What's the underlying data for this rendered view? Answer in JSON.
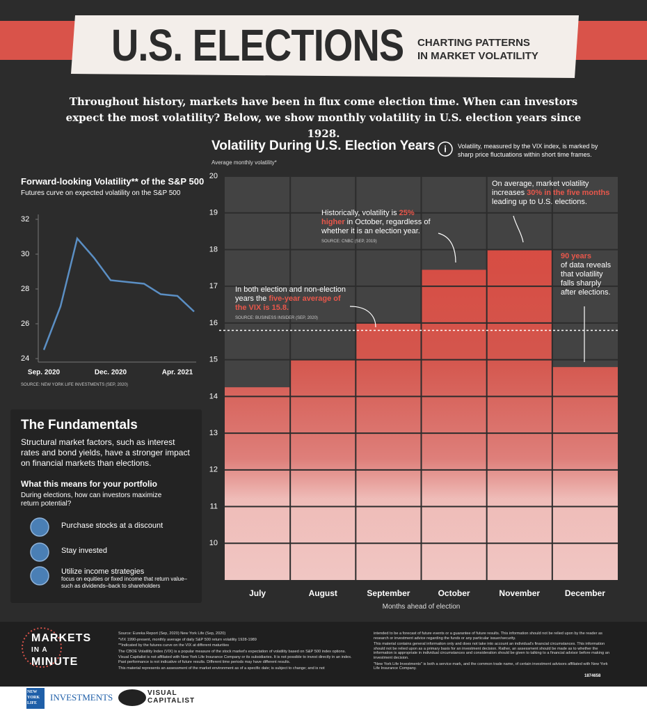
{
  "header": {
    "title": "U.S. ELECTIONS",
    "subtitle": [
      "CHARTING PATTERNS",
      "IN MARKET VOLATILITY"
    ]
  },
  "intro": "Throughout history, markets have been in flux come election time. When can investors expect the most volatility? Below, we show monthly volatility in U.S. election years since 1928.",
  "chart_data": [
    {
      "type": "line",
      "title": "Forward-looking Volatility** of the S&P 500",
      "subtitle": "Futures curve on expected volatility on the S&P 500",
      "categories": [
        "Sep. 2020",
        null,
        null,
        null,
        "Dec. 2020",
        null,
        null,
        null,
        "Apr. 2021",
        null
      ],
      "values": [
        24.5,
        27.0,
        30.9,
        29.8,
        28.5,
        28.4,
        28.3,
        27.7,
        27.6,
        26.7
      ],
      "color": "#5b8fc4",
      "ylim": [
        24,
        32
      ],
      "yticks": [
        24,
        26,
        28,
        30,
        32
      ],
      "source": "SOURCE: NEW YORK LIFE INVESTMENTS (SEP, 2020)"
    },
    {
      "type": "bar",
      "title": "Volatility During U.S. Election Years",
      "y_label": "Average monthly volatility*",
      "x_label": "Months ahead of election",
      "note": "Volatility, measured by the VIX index, is marked by sharp price fluctuations within short time frames.",
      "categories": [
        "July",
        "August",
        "September",
        "October",
        "November",
        "December"
      ],
      "values": [
        14.25,
        15,
        16,
        17.45,
        18,
        14.8
      ],
      "ylim": [
        9,
        20
      ],
      "yticks": [
        10,
        11,
        12,
        13,
        14,
        15,
        16,
        17,
        18,
        19,
        20
      ],
      "grid": true,
      "reference_line": 15.8,
      "annotations": [
        {
          "before": "In both election and non-election years the ",
          "highlight": "five-year average of the VIX is 15.8.",
          "source": "SOURCE: BUSINESS INSIDER (SEP, 2020)"
        },
        {
          "before": "Historically, volatility is ",
          "highlight": "25% higher",
          "after": " in October, regardless of whether it is an election year.",
          "source": "SOURCE: CNBC (SEP, 2019)"
        },
        {
          "before": "On average, market volatility increases ",
          "highlight": "30% in the five months",
          "after": " leading up to U.S. elections."
        },
        {
          "highlight": "90 years",
          "after": "of data reveals that volatility falls sharply after elections."
        }
      ]
    }
  ],
  "fundamentals": {
    "title": "The Fundamentals",
    "body": "Structural market factors, such as interest rates and bond yields, have a stronger impact on financial markets than elections.",
    "heading": "What this means for your portfolio",
    "question": "During elections, how can investors maximize return potential?",
    "items": [
      {
        "label": "Purchase stocks at a discount"
      },
      {
        "label": "Stay invested"
      },
      {
        "label": "Utilize income strategies",
        "detail": "focus on equities or fixed income that return value–such as dividends–back to shareholders"
      }
    ]
  },
  "footer": {
    "logo": [
      "MARKETS",
      "IN A",
      "MINUTE"
    ],
    "notes_left": [
      "Source: Eureka Report (Sep, 2020) New York Life (Sep, 2020)",
      "*VIX 1990-present, monthly average of daily S&P 500 return volatility 1928-1989",
      "**Indicated by the futures curve on the VIX at different maturities",
      "The CBOE Volatility Index (VIX) is a popular measure of the stock market's expectation of volatility based on S&P 500 index options.",
      "Visual Capitalist is not affiliated with New York Life Insurance Company or its subsidiaries. It is not possible to invest directly in an index. Past performance is not indicative of future results. Different time periods may have different results.",
      "This material represents an assessment of the market environment as of a specific date; is subject to change; and is not"
    ],
    "notes_right": [
      "intended to be a forecast of future events or a guarantee of future results. This information should not be relied upon by the reader as research or investment advice regarding the funds or any particular issuer/security.",
      "This material contains general information only and does not take into account an individual's financial circumstances. This information should not be relied upon as a primary basis for an investment decision. Rather, an assessment should be made as to whether the information is appropriate in individual circumstances and consideration should be given to talking to a financial advisor before making an investment decision.",
      "\"New York Life Investments\" is both a service mark, and the common trade name, of certain investment advisors affiliated with New York Life Insurance Company."
    ],
    "code": "1874658",
    "brand_left": [
      "NEW",
      "YORK",
      "LIFE"
    ],
    "brand_left_name": "INVESTMENTS",
    "brand_right": [
      "VISUAL",
      "CAPITALIST"
    ]
  }
}
